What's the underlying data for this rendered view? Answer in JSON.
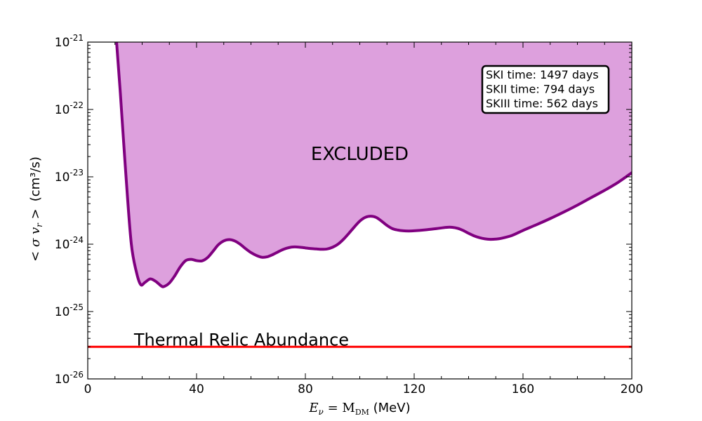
{
  "chart_data": {
    "type": "area",
    "x_axis": {
      "label_math": "E",
      "label_sub": "ν",
      "label_eq": " = M",
      "label_sub2": "DM",
      "label_unit": " (MeV)",
      "range": [
        0,
        200
      ],
      "ticks": [
        0,
        40,
        80,
        120,
        160,
        200
      ],
      "tick_labels": [
        "0",
        "40",
        "80",
        "120",
        "160",
        "200"
      ]
    },
    "y_axis": {
      "label_math": "< σ v",
      "label_sub": "r",
      "label_math2": " >",
      "label_unit": "(cm³/s)",
      "scale": "log",
      "range": [
        1e-26,
        1e-21
      ],
      "ticks": [
        1e-26,
        1e-25,
        1e-24,
        1e-23,
        1e-22,
        1e-21
      ],
      "tick_labels": [
        {
          "base": "10",
          "exp": "-26"
        },
        {
          "base": "10",
          "exp": "-25"
        },
        {
          "base": "10",
          "exp": "-24"
        },
        {
          "base": "10",
          "exp": "-23"
        },
        {
          "base": "10",
          "exp": "-22"
        },
        {
          "base": "10",
          "exp": "-21"
        }
      ]
    },
    "grid": false,
    "series": [
      {
        "name": "Exclusion limit",
        "color": "#800080",
        "fill": "#dda0dd",
        "x": [
          10.5,
          12,
          14,
          16,
          18,
          19.5,
          21,
          23,
          25,
          27,
          28,
          30,
          32,
          34,
          36,
          38,
          40,
          42,
          44,
          46,
          48,
          50,
          52,
          54,
          56,
          58,
          60,
          62,
          64,
          66,
          68,
          70,
          72,
          74,
          76,
          78,
          80,
          82,
          84,
          86,
          88,
          90,
          92,
          94,
          96,
          98,
          100,
          102,
          104,
          106,
          108,
          110,
          112,
          114,
          116,
          118,
          120,
          124,
          128,
          132,
          134,
          136,
          138,
          140,
          142,
          144,
          146,
          148,
          150,
          152,
          156,
          160,
          165,
          170,
          175,
          180,
          185,
          190,
          195,
          200
        ],
        "y": [
          1e-21,
          1.7e-22,
          1.1e-23,
          1.02e-24,
          3.7e-25,
          2.5e-25,
          2.7e-25,
          3.05e-25,
          2.8e-25,
          2.4e-25,
          2.35e-25,
          2.65e-25,
          3.4e-25,
          4.6e-25,
          5.7e-25,
          5.95e-25,
          5.7e-25,
          5.65e-25,
          6.3e-25,
          7.8e-25,
          9.8e-25,
          1.12e-24,
          1.17e-24,
          1.12e-24,
          1e-24,
          8.6e-25,
          7.5e-25,
          6.8e-25,
          6.4e-25,
          6.5e-25,
          7e-25,
          7.7e-25,
          8.4e-25,
          8.9e-25,
          9.1e-25,
          9e-25,
          8.8e-25,
          8.6e-25,
          8.5e-25,
          8.4e-25,
          8.5e-25,
          9e-25,
          1e-24,
          1.18e-24,
          1.45e-24,
          1.8e-24,
          2.2e-24,
          2.5e-24,
          2.6e-24,
          2.5e-24,
          2.2e-24,
          1.9e-24,
          1.7e-24,
          1.62e-24,
          1.58e-24,
          1.57e-24,
          1.58e-24,
          1.63e-24,
          1.7e-24,
          1.78e-24,
          1.78e-24,
          1.72e-24,
          1.6e-24,
          1.45e-24,
          1.33e-24,
          1.25e-24,
          1.2e-24,
          1.18e-24,
          1.19e-24,
          1.22e-24,
          1.35e-24,
          1.6e-24,
          1.95e-24,
          2.4e-24,
          3e-24,
          3.8e-24,
          4.9e-24,
          6.3e-24,
          8.3e-24,
          1.15e-23
        ]
      },
      {
        "name": "Thermal Relic Abundance",
        "color": "#ff0000",
        "x": [
          0,
          200
        ],
        "y": [
          3e-26,
          3e-26
        ]
      }
    ],
    "annotations": [
      {
        "text": "EXCLUDED",
        "x": 100,
        "y": 2.2e-23
      },
      {
        "text": "Thermal Relic Abundance",
        "x": 17,
        "y": 3.8e-26
      }
    ],
    "legend": {
      "placement": "top-right",
      "lines": [
        "SKI time: 1497 days",
        "SKII time: 794 days",
        "SKIII time: 562 days"
      ]
    }
  }
}
